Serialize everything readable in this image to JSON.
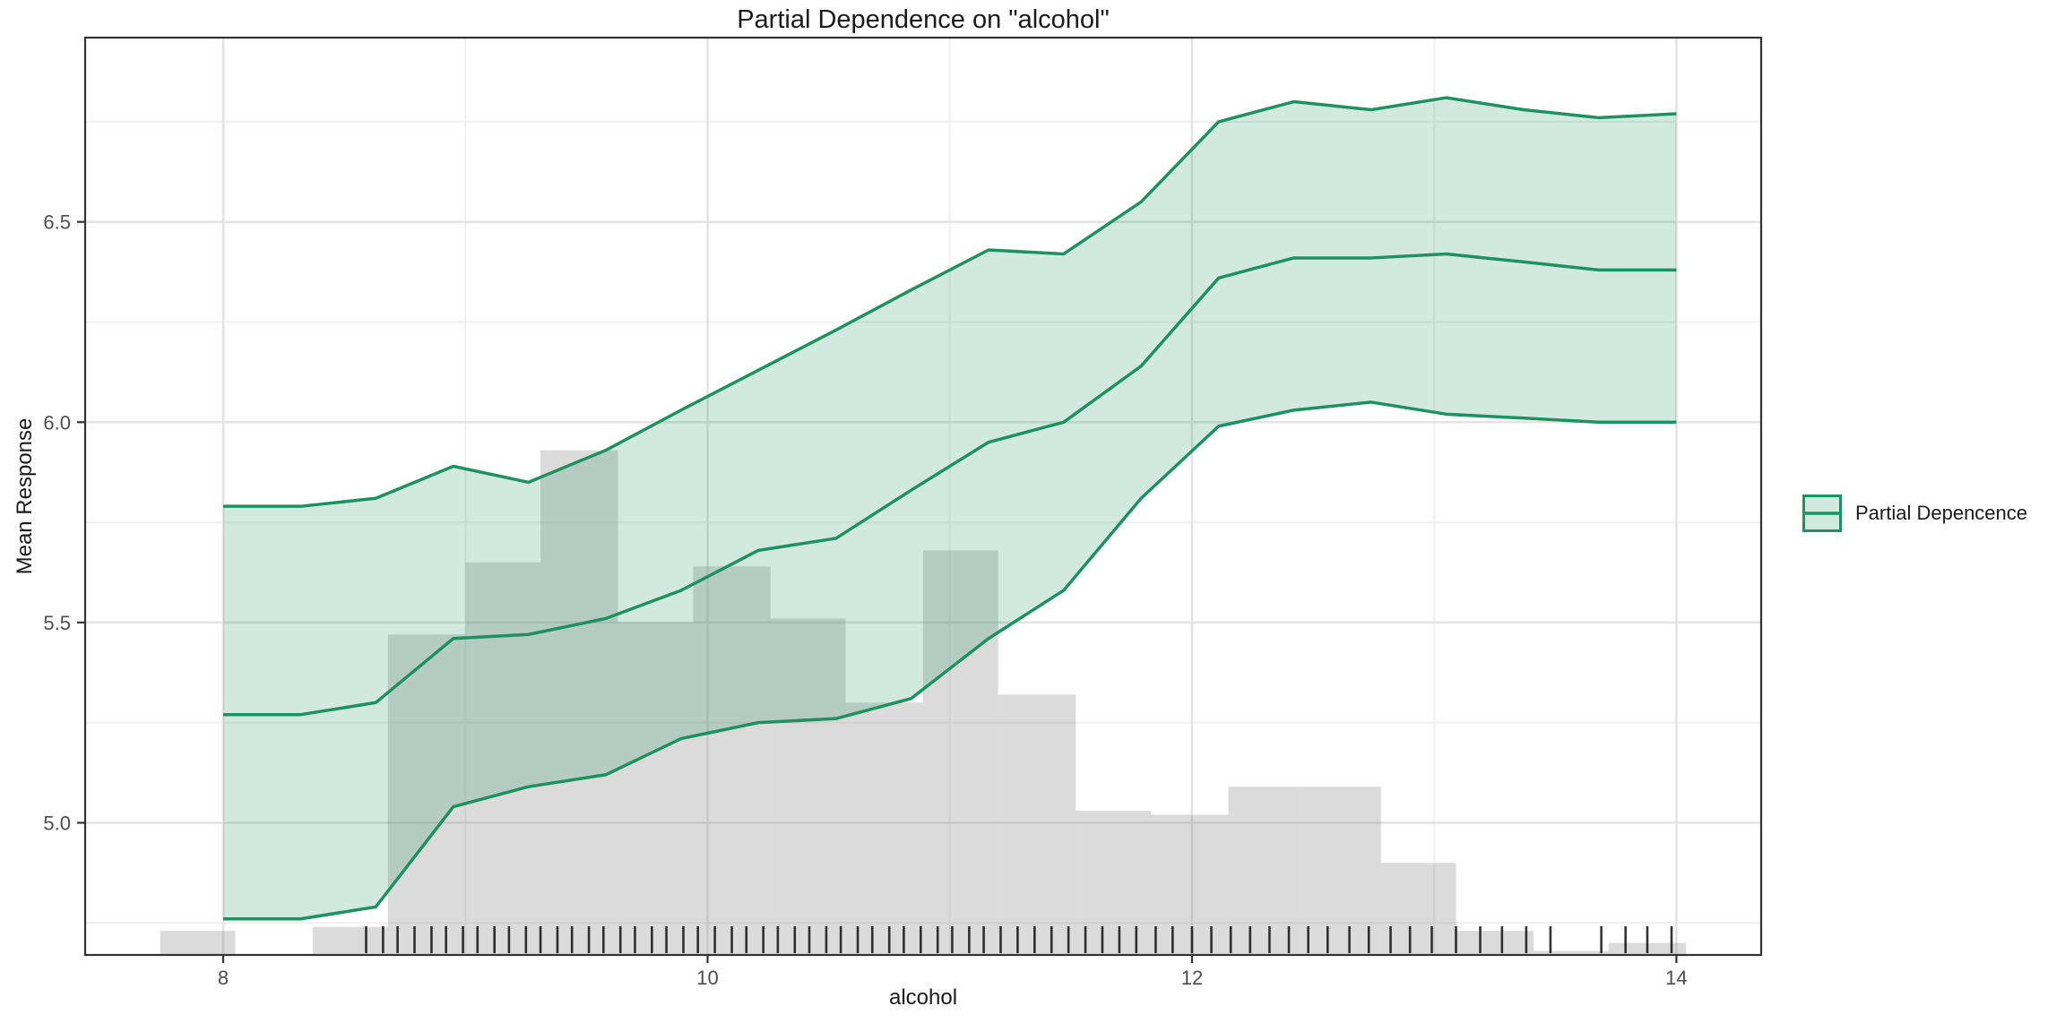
{
  "chart_data": {
    "type": "line",
    "subtype": "partial-dependence-with-ribbon-histogram-rug",
    "title": "Partial Dependence on \"alcohol\"",
    "xlabel": "alcohol",
    "ylabel": "Mean Response",
    "legend": {
      "label": "Partial Depencence",
      "position": "right"
    },
    "grid": "on",
    "xlim": [
      7.43,
      14.35
    ],
    "ylim": [
      4.67,
      6.96
    ],
    "x_ticks": [
      8,
      10,
      12,
      14
    ],
    "x_tick_labels": [
      "8",
      "10",
      "12",
      "14"
    ],
    "x_minor_gridlines": [
      9,
      11,
      13
    ],
    "y_ticks": [
      5.0,
      5.5,
      6.0,
      6.5
    ],
    "y_tick_labels": [
      "5.0",
      "5.5",
      "6.0",
      "6.5"
    ],
    "y_minor_gridlines": [
      4.75,
      5.25,
      5.75,
      6.25,
      6.75
    ],
    "pd_curve": {
      "name": "Partial Depencence",
      "x": [
        8.0,
        8.32,
        8.63,
        8.95,
        9.26,
        9.58,
        9.89,
        10.21,
        10.53,
        10.84,
        11.16,
        11.47,
        11.79,
        12.11,
        12.42,
        12.74,
        13.05,
        13.37,
        13.68,
        14.0
      ],
      "mean": [
        5.27,
        5.27,
        5.3,
        5.46,
        5.47,
        5.51,
        5.58,
        5.68,
        5.71,
        5.83,
        5.95,
        6.0,
        6.14,
        6.36,
        6.41,
        6.41,
        6.42,
        6.4,
        6.38,
        6.38
      ],
      "upper": [
        5.79,
        5.79,
        5.81,
        5.89,
        5.85,
        5.93,
        6.03,
        6.13,
        6.23,
        6.33,
        6.43,
        6.42,
        6.55,
        6.75,
        6.8,
        6.78,
        6.81,
        6.78,
        6.76,
        6.77
      ],
      "lower": [
        4.76,
        4.76,
        4.79,
        5.04,
        5.09,
        5.12,
        5.21,
        5.25,
        5.26,
        5.31,
        5.46,
        5.58,
        5.81,
        5.99,
        6.03,
        6.05,
        6.02,
        6.01,
        6.0,
        6.0
      ]
    },
    "histogram": {
      "note": "bar tops measured in y-axis (Mean Response) units, bars rise from panel bottom",
      "bin_edges": [
        7.74,
        8.05,
        8.37,
        8.68,
        9.0,
        9.31,
        9.63,
        9.94,
        10.26,
        10.57,
        10.89,
        11.2,
        11.52,
        11.83,
        12.15,
        12.46,
        12.78,
        13.09,
        13.41,
        13.72,
        14.04
      ],
      "bin_top_y": [
        4.73,
        null,
        4.74,
        5.47,
        5.65,
        5.93,
        5.5,
        5.64,
        5.51,
        5.3,
        5.68,
        5.32,
        5.03,
        5.02,
        5.09,
        5.09,
        4.9,
        4.73,
        4.68,
        4.7
      ]
    },
    "rug_x": [
      8.59,
      8.66,
      8.72,
      8.79,
      8.86,
      8.92,
      8.99,
      9.05,
      9.12,
      9.18,
      9.25,
      9.31,
      9.38,
      9.44,
      9.51,
      9.57,
      9.64,
      9.7,
      9.77,
      9.83,
      9.9,
      9.96,
      10.03,
      10.1,
      10.16,
      10.23,
      10.29,
      10.36,
      10.42,
      10.49,
      10.55,
      10.62,
      10.68,
      10.75,
      10.81,
      10.88,
      10.95,
      11.01,
      11.08,
      11.14,
      11.21,
      11.28,
      11.35,
      11.42,
      11.49,
      11.56,
      11.63,
      11.7,
      11.77,
      11.85,
      11.92,
      12.0,
      12.08,
      12.16,
      12.24,
      12.32,
      12.4,
      12.48,
      12.56,
      12.65,
      12.73,
      12.82,
      12.9,
      12.99,
      13.09,
      13.19,
      13.28,
      13.38,
      13.48,
      13.69,
      13.79,
      13.88,
      13.98
    ],
    "colors": {
      "line": "#1d9160",
      "ribbon_fill": "rgba(29,145,96,0.20)",
      "bar_fill": "rgba(125,125,125,0.28)",
      "grid_major": "#e3e3e3",
      "grid_minor": "#f0f0f0",
      "panel_border": "#333333",
      "tick_text": "#4d4d4d",
      "rug": "#111111"
    }
  }
}
